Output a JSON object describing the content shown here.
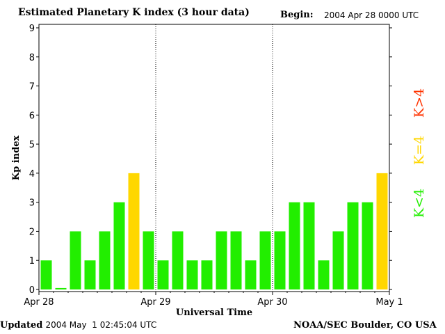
{
  "header": {
    "title": "Estimated Planetary K index (3 hour data)",
    "begin_label": "Begin:",
    "begin_value": "2004 Apr 28 0000 UTC"
  },
  "footer": {
    "updated_label": "Updated",
    "updated_value": "2004 May  1 02:45:04 UTC",
    "source": "NOAA/SEC Boulder, CO USA"
  },
  "legend": {
    "high": {
      "label": "K>4",
      "color": "#ff3300"
    },
    "equal": {
      "label": "K=4",
      "color": "#ffd700"
    },
    "low": {
      "label": "K<4",
      "color": "#22ee00"
    }
  },
  "chart_data": {
    "type": "bar",
    "title": "Estimated Planetary K index (3 hour data)",
    "xlabel": "Universal Time",
    "ylabel": "Kp index",
    "ylim": [
      0,
      9
    ],
    "yticks": [
      0,
      1,
      2,
      3,
      4,
      5,
      6,
      7,
      8,
      9
    ],
    "x_tick_labels": [
      "Apr 28",
      "Apr 29",
      "Apr 30",
      "May 1"
    ],
    "day_dividers": [
      "Apr 29",
      "Apr 30"
    ],
    "interval_hours": 3,
    "values": [
      1,
      0.05,
      2,
      1,
      2,
      3,
      4,
      2,
      1,
      2,
      1,
      1,
      2,
      2,
      1,
      2,
      2,
      3,
      3,
      1,
      2,
      3,
      3,
      4
    ],
    "colors": {
      "low": "#22ee00",
      "equal": "#ffd700",
      "high": "#ff3300"
    },
    "grid": false
  }
}
